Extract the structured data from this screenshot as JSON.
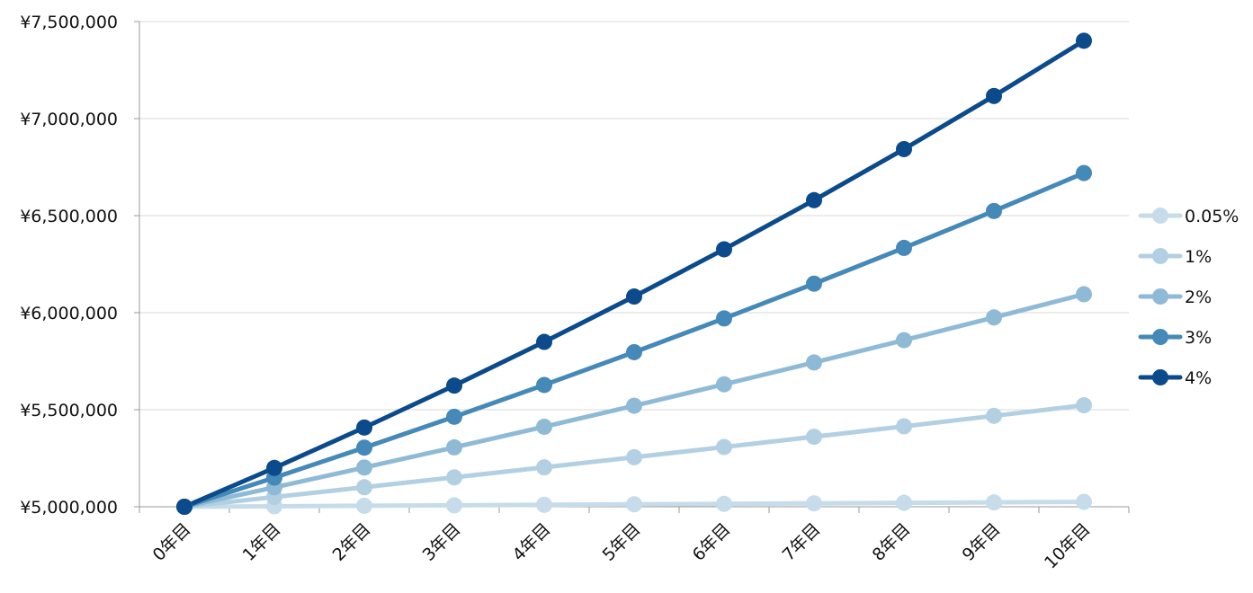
{
  "chart_data": {
    "type": "line",
    "title": "",
    "xlabel": "",
    "ylabel": "",
    "categories": [
      "0年目",
      "1年目",
      "2年目",
      "3年目",
      "4年目",
      "5年目",
      "6年目",
      "7年目",
      "8年目",
      "9年目",
      "10年目"
    ],
    "ylim": [
      5000000,
      7500000
    ],
    "y_ticks": [
      5000000,
      5500000,
      6000000,
      6500000,
      7000000,
      7500000
    ],
    "y_tick_labels": [
      "¥5,000,000",
      "¥5,500,000",
      "¥6,000,000",
      "¥6,500,000",
      "¥7,000,000",
      "¥7,500,000"
    ],
    "grid": true,
    "legend_position": "right",
    "series": [
      {
        "name": "0.05%",
        "color": "#c6dcea",
        "values": [
          5000000,
          5002500,
          5005001,
          5007504,
          5010008,
          5012513,
          5015019,
          5017526,
          5020035,
          5022545,
          5025056
        ]
      },
      {
        "name": "1%",
        "color": "#b3d0e3",
        "values": [
          5000000,
          5050000,
          5100500,
          5151505,
          5203020,
          5255050,
          5307601,
          5360677,
          5414284,
          5468427,
          5523111
        ]
      },
      {
        "name": "2%",
        "color": "#8fbad6",
        "values": [
          5000000,
          5100000,
          5202000,
          5306040,
          5412161,
          5520404,
          5630812,
          5743428,
          5858297,
          5975463,
          6094972
        ]
      },
      {
        "name": "3%",
        "color": "#4589b8",
        "values": [
          5000000,
          5150000,
          5304500,
          5463635,
          5627544,
          5796370,
          5970261,
          6149369,
          6333850,
          6523866,
          6719582
        ]
      },
      {
        "name": "4%",
        "color": "#0b4a8b",
        "values": [
          5000000,
          5200000,
          5408000,
          5624320,
          5849293,
          6083265,
          6326595,
          6579659,
          6842845,
          7116559,
          7401221
        ]
      }
    ]
  }
}
